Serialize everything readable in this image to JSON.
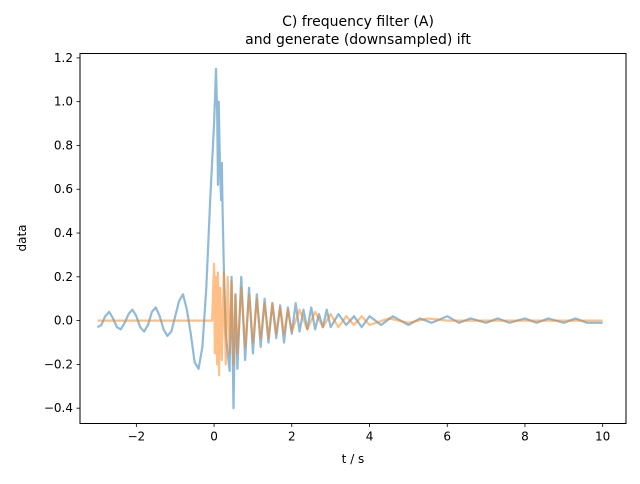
{
  "chart_data": {
    "type": "line",
    "title_line1": "C) frequency filter (A)",
    "title_line2": "and generate (downsampled) ift",
    "xlabel": "t / s",
    "ylabel": "data",
    "xlim": [
      -3.45,
      10.6
    ],
    "ylim": [
      -0.47,
      1.22
    ],
    "xticks": [
      -2,
      0,
      2,
      4,
      6,
      8,
      10
    ],
    "xtick_labels": [
      "−2",
      "0",
      "2",
      "4",
      "6",
      "8",
      "10"
    ],
    "yticks": [
      -0.4,
      -0.2,
      0.0,
      0.2,
      0.4,
      0.6,
      0.8,
      1.0,
      1.2
    ],
    "ytick_labels": [
      "−0.4",
      "−0.2",
      "0.0",
      "0.2",
      "0.4",
      "0.6",
      "0.8",
      "1.0",
      "1.2"
    ],
    "grid": false,
    "legend": "none",
    "series": [
      {
        "color": "#1f77b4",
        "opacity": 0.5,
        "x": [
          -3.0,
          -2.9,
          -2.8,
          -2.7,
          -2.6,
          -2.5,
          -2.4,
          -2.3,
          -2.2,
          -2.1,
          -2.0,
          -1.9,
          -1.8,
          -1.7,
          -1.6,
          -1.5,
          -1.4,
          -1.3,
          -1.2,
          -1.1,
          -1.0,
          -0.9,
          -0.8,
          -0.7,
          -0.6,
          -0.5,
          -0.4,
          -0.3,
          -0.2,
          -0.1,
          0.0,
          0.05,
          0.08,
          0.1,
          0.12,
          0.15,
          0.18,
          0.2,
          0.22,
          0.25,
          0.3,
          0.35,
          0.4,
          0.45,
          0.5,
          0.55,
          0.6,
          0.7,
          0.8,
          0.9,
          1.0,
          1.1,
          1.2,
          1.3,
          1.4,
          1.5,
          1.6,
          1.7,
          1.8,
          1.9,
          2.0,
          2.1,
          2.2,
          2.3,
          2.4,
          2.5,
          2.6,
          2.7,
          2.8,
          2.9,
          3.0,
          3.2,
          3.4,
          3.6,
          3.8,
          4.0,
          4.3,
          4.6,
          5.0,
          5.3,
          5.6,
          6.0,
          6.3,
          6.6,
          7.0,
          7.3,
          7.6,
          8.0,
          8.3,
          8.6,
          9.0,
          9.3,
          9.6,
          10.0
        ],
        "y": [
          -0.03,
          -0.02,
          0.02,
          0.04,
          0.01,
          -0.03,
          -0.04,
          -0.01,
          0.03,
          0.05,
          0.02,
          -0.03,
          -0.05,
          -0.02,
          0.04,
          0.06,
          0.02,
          -0.04,
          -0.07,
          -0.05,
          0.02,
          0.09,
          0.12,
          0.05,
          -0.06,
          -0.19,
          -0.22,
          -0.12,
          0.15,
          0.55,
          0.9,
          1.15,
          0.95,
          0.62,
          1.0,
          0.72,
          0.55,
          0.72,
          0.5,
          0.25,
          -0.05,
          -0.15,
          -0.23,
          0.2,
          -0.4,
          0.12,
          -0.22,
          0.2,
          -0.18,
          0.15,
          -0.15,
          0.12,
          -0.12,
          0.1,
          -0.1,
          0.08,
          -0.08,
          0.07,
          -0.1,
          0.06,
          -0.06,
          0.08,
          -0.05,
          0.05,
          -0.04,
          0.06,
          -0.04,
          0.03,
          -0.03,
          0.05,
          -0.03,
          0.03,
          -0.02,
          0.02,
          -0.03,
          0.02,
          -0.02,
          0.02,
          -0.02,
          0.01,
          -0.01,
          0.02,
          -0.01,
          0.01,
          -0.01,
          0.01,
          -0.01,
          0.01,
          -0.01,
          0.01,
          -0.01,
          0.01,
          -0.01,
          -0.01
        ]
      },
      {
        "color": "#ff7f0e",
        "opacity": 0.5,
        "x": [
          -3.0,
          -2.0,
          -1.0,
          -0.3,
          -0.05,
          0.0,
          0.02,
          0.05,
          0.08,
          0.1,
          0.13,
          0.16,
          0.2,
          0.25,
          0.3,
          0.35,
          0.4,
          0.45,
          0.5,
          0.55,
          0.6,
          0.7,
          0.8,
          0.9,
          1.0,
          1.1,
          1.2,
          1.3,
          1.4,
          1.5,
          1.6,
          1.7,
          1.8,
          1.9,
          2.0,
          2.2,
          2.4,
          2.6,
          2.8,
          3.0,
          3.2,
          3.4,
          3.6,
          3.8,
          4.0,
          4.5,
          5.0,
          5.5,
          6.0,
          7.0,
          8.0,
          9.0,
          10.0
        ],
        "y": [
          0.0,
          0.0,
          0.0,
          0.0,
          0.0,
          0.26,
          -0.15,
          0.2,
          -0.2,
          0.22,
          -0.25,
          0.15,
          -0.18,
          0.22,
          -0.2,
          0.2,
          -0.15,
          0.18,
          -0.2,
          0.12,
          -0.15,
          0.15,
          -0.12,
          0.12,
          -0.1,
          0.1,
          -0.08,
          0.08,
          -0.08,
          0.08,
          -0.06,
          0.06,
          -0.06,
          0.05,
          -0.05,
          0.05,
          -0.04,
          0.04,
          -0.03,
          0.03,
          -0.03,
          0.02,
          -0.02,
          0.02,
          -0.02,
          0.01,
          -0.01,
          0.01,
          0.0,
          0.0,
          0.0,
          0.0,
          0.0
        ]
      }
    ]
  }
}
